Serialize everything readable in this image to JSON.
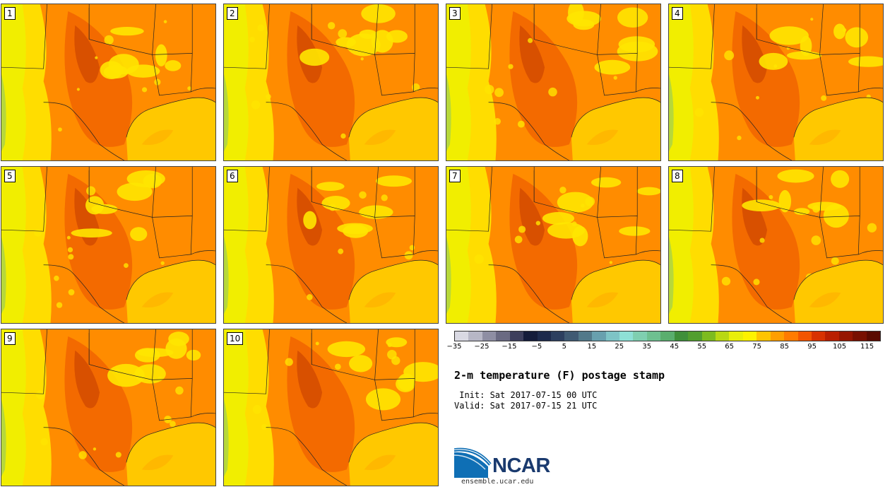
{
  "panels": [
    {
      "label": "1",
      "variant": 0
    },
    {
      "label": "2",
      "variant": 1
    },
    {
      "label": "3",
      "variant": 2
    },
    {
      "label": "4",
      "variant": 3
    },
    {
      "label": "5",
      "variant": 4
    },
    {
      "label": "6",
      "variant": 5
    },
    {
      "label": "7",
      "variant": 6
    },
    {
      "label": "8",
      "variant": 7
    },
    {
      "label": "9",
      "variant": 8
    },
    {
      "label": "10",
      "variant": 9
    }
  ],
  "colorbar": {
    "colors": [
      "#d9d9e3",
      "#b7b7c6",
      "#8e8ea3",
      "#6a6a82",
      "#3d3f5c",
      "#141c3a",
      "#1d2a4c",
      "#2c3f5f",
      "#3f5a73",
      "#52798a",
      "#68a0ae",
      "#7ec4c6",
      "#8ee0d6",
      "#7fcfb0",
      "#6ec090",
      "#5aae6e",
      "#3f8f3a",
      "#529e2e",
      "#7dbb1f",
      "#b9d812",
      "#e9ee0a",
      "#fef200",
      "#ffc400",
      "#ff9e00",
      "#ff7b00",
      "#f25500",
      "#d83200",
      "#b91f00",
      "#961600",
      "#781000",
      "#5a0a00"
    ],
    "tick_labels": [
      "−35",
      "−25",
      "−15",
      "−5",
      "5",
      "15",
      "25",
      "35",
      "45",
      "55",
      "65",
      "75",
      "85",
      "95",
      "105",
      "115"
    ]
  },
  "title": "2-m temperature (F) postage stamp",
  "init_line": " Init: Sat 2017-07-15 00 UTC",
  "valid_line": "Valid: Sat 2017-07-15 21 UTC",
  "logo_text": "NCAR",
  "website": "ensemble.ucar.edu",
  "map_colors": {
    "gulf": "#ffc800",
    "gulf_warm": "#ffb100",
    "base": "#ff8c00",
    "hot": "#f36a00",
    "very_hot": "#d24b00",
    "cool_yellow": "#ffe500",
    "cooler": "#f0f000",
    "green": "#b0d540",
    "border": "#222222"
  }
}
